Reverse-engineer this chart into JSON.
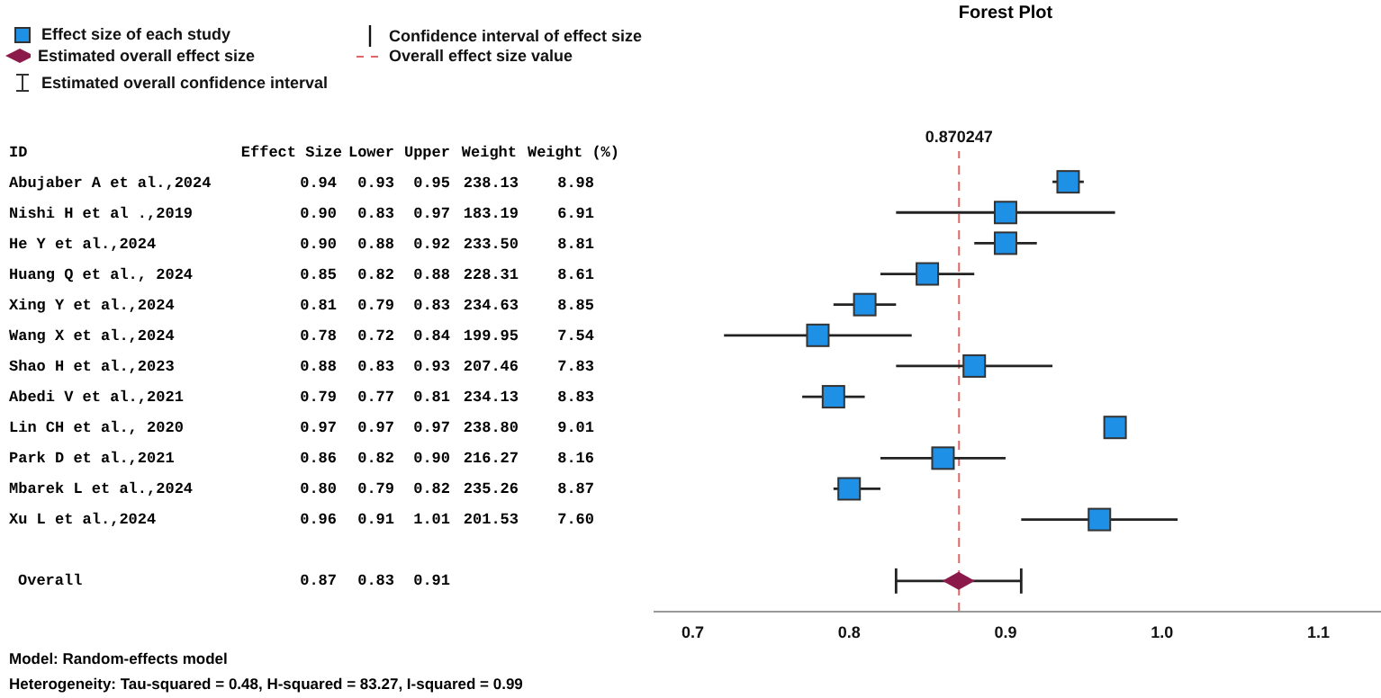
{
  "chart_data": [
    {
      "type": "other",
      "ylabel": "ID",
      "categories": [
        "Abujaber A et al.,2024",
        "Nishi H et al .,2019",
        "He Y et al.,2024",
        "Huang Q et al., 2024",
        "Xing Y et al.,2024",
        "Wang X et al.,2024",
        "Shao H et al.,2023",
        "Abedi V et al.,2021",
        "Lin CH et al., 2020",
        "Park D et al.,2021",
        "Mbarek L et al.,2024",
        "Xu L et al.,2024",
        null,
        "Overall"
      ],
      "series": [
        {
          "name": "Effect Size",
          "values": [
            0.94,
            0.9,
            0.9,
            0.85,
            0.81,
            0.78,
            0.88,
            0.79,
            0.97,
            0.86,
            0.8,
            0.96,
            null,
            0.87
          ],
          "value_labels": [
            "0.94",
            "0.90",
            "0.90",
            "0.85",
            "0.81",
            "0.78",
            "0.88",
            "0.79",
            "0.97",
            "0.86",
            "0.80",
            "0.96",
            null,
            "0.87"
          ]
        },
        {
          "name": "Lower",
          "values": [
            0.93,
            0.83,
            0.88,
            0.82,
            0.79,
            0.72,
            0.83,
            0.77,
            0.97,
            0.82,
            0.79,
            0.91,
            null,
            0.83
          ],
          "value_labels": [
            "0.93",
            "0.83",
            "0.88",
            "0.82",
            "0.79",
            "0.72",
            "0.83",
            "0.77",
            "0.97",
            "0.82",
            "0.79",
            "0.91",
            null,
            "0.83"
          ]
        },
        {
          "name": "Upper",
          "values": [
            0.95,
            0.97,
            0.92,
            0.88,
            0.83,
            0.84,
            0.93,
            0.81,
            0.97,
            0.9,
            0.82,
            1.01,
            null,
            0.91
          ],
          "value_labels": [
            "0.95",
            "0.97",
            "0.92",
            "0.88",
            "0.83",
            "0.84",
            "0.93",
            "0.81",
            "0.97",
            "0.90",
            "0.82",
            "1.01",
            null,
            "0.91"
          ]
        },
        {
          "name": "Weight",
          "values": [
            238.13,
            183.19,
            233.5,
            228.31,
            234.63,
            199.95,
            207.46,
            234.13,
            238.8,
            216.27,
            235.26,
            201.53,
            null,
            null
          ],
          "value_labels": [
            "238.13",
            "183.19",
            "233.50",
            "228.31",
            "234.63",
            "199.95",
            "207.46",
            "234.13",
            "238.80",
            "216.27",
            "235.26",
            "201.53",
            null,
            null
          ]
        },
        {
          "name": "Weight (%)",
          "values": [
            8.98,
            6.91,
            8.81,
            8.61,
            8.85,
            7.54,
            7.83,
            8.83,
            9.01,
            8.16,
            8.87,
            7.6,
            null,
            null
          ],
          "value_labels": [
            "8.98",
            "6.91",
            "8.81",
            "8.61",
            "8.85",
            "7.54",
            "7.83",
            "8.83",
            "9.01",
            "8.16",
            "8.87",
            "7.60",
            null,
            null
          ]
        }
      ],
      "annotations": [
        "Model: Random-effects model",
        "Heterogeneity: Tau-squared = 0.48, H-squared = 83.27, I-squared = 0.99"
      ]
    },
    {
      "type": "scatter",
      "title": "Forest Plot",
      "orientation": "horizontal",
      "categories": [
        null,
        null,
        null,
        null,
        null,
        null,
        null,
        null,
        null,
        null,
        null,
        null,
        null,
        null
      ],
      "xlim": [
        0.675,
        1.14
      ],
      "xticks": [
        0.7,
        0.8,
        0.9,
        {
          "value": 1,
          "label": "1.0"
        },
        1.1
      ],
      "legend": "top left",
      "series": [
        {
          "name": "Effect size of each study",
          "marker": "square",
          "color": "#1e90e6",
          "values": [
            0.94,
            0.9,
            0.9,
            0.85,
            0.81,
            0.78,
            0.88,
            0.79,
            0.97,
            0.86,
            0.8,
            0.96,
            null,
            null
          ],
          "errors": [
            [
              0.93,
              0.95
            ],
            [
              0.83,
              0.97
            ],
            [
              0.88,
              0.92
            ],
            [
              0.82,
              0.88
            ],
            [
              0.79,
              0.83
            ],
            [
              0.72,
              0.84
            ],
            [
              0.83,
              0.93
            ],
            [
              0.77,
              0.81
            ],
            [
              0.97,
              0.97
            ],
            [
              0.82,
              0.9
            ],
            [
              0.79,
              0.82
            ],
            [
              0.91,
              1.01
            ],
            null,
            null
          ]
        },
        {
          "name": "Estimated overall effect size",
          "marker": "diamond",
          "color": "#8b1a4a",
          "values": [
            null,
            null,
            null,
            null,
            null,
            null,
            null,
            null,
            null,
            null,
            null,
            null,
            null,
            0.87
          ],
          "errors": [
            null,
            null,
            null,
            null,
            null,
            null,
            null,
            null,
            null,
            null,
            null,
            null,
            null,
            [
              0.83,
              0.91
            ]
          ]
        }
      ],
      "ref_lines": [
        {
          "axis": "x",
          "value": 0.870247,
          "label": "0.870247",
          "color": "#e06666",
          "line_style": "dashed"
        }
      ],
      "annotations": [
        "Confidence interval of effect size",
        "Estimated overall confidence interval",
        "Overall effect size value"
      ]
    }
  ]
}
